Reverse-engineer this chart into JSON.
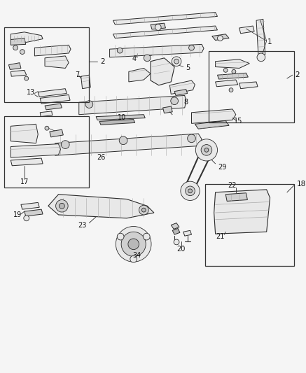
{
  "background_color": "#f5f5f5",
  "fig_width": 4.37,
  "fig_height": 5.33,
  "dpi": 100,
  "line_color": "#2a2a2a",
  "fill_light": "#e8e8e8",
  "fill_mid": "#d0d0d0",
  "fill_dark": "#b8b8b8"
}
